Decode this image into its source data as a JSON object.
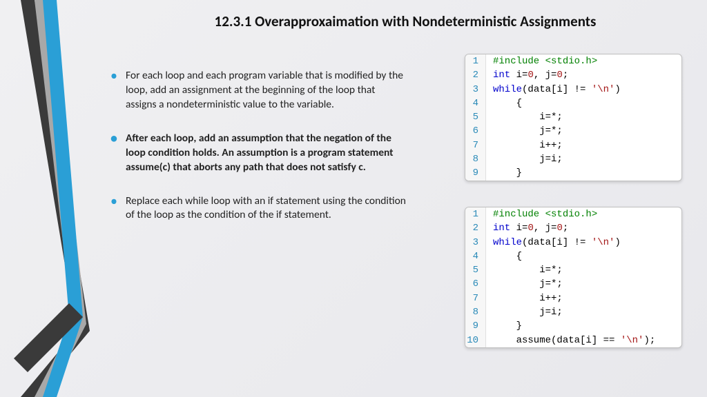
{
  "title": "12.3.1 Overapproxaimation with Nondeterministic Assignments",
  "bullets": [
    {
      "text": "For each loop and each program variable that is modified by the loop, add an assignment at the beginning of the loop that assigns a nondeterministic value to the variable.",
      "bold": false
    },
    {
      "text": " After each loop, add an assumption that the negation of the loop condition holds. An assumption is a program statement assume(c) that aborts any path that does not satisfy c.",
      "bold": true
    },
    {
      "text": " Replace each while loop with an if statement using the condition of the loop as the condition of the if statement.",
      "bold": false
    }
  ],
  "code1": {
    "lines": [
      {
        "n": 1,
        "tokens": [
          [
            "inc",
            "#include <stdio.h>"
          ]
        ]
      },
      {
        "n": 2,
        "tokens": [
          [
            "kw",
            "int"
          ],
          [
            "id",
            " i="
          ],
          [
            "num",
            "0"
          ],
          [
            "id",
            ", j="
          ],
          [
            "num",
            "0"
          ],
          [
            "id",
            ";"
          ]
        ]
      },
      {
        "n": 3,
        "tokens": [
          [
            "kw",
            "while"
          ],
          [
            "id",
            "(data[i] != "
          ],
          [
            "str",
            "'\\n'"
          ],
          [
            "id",
            ")"
          ]
        ]
      },
      {
        "n": 4,
        "tokens": [
          [
            "id",
            "    {"
          ]
        ]
      },
      {
        "n": 5,
        "tokens": [
          [
            "id",
            "        i=*;"
          ]
        ]
      },
      {
        "n": 6,
        "tokens": [
          [
            "id",
            "        j=*;"
          ]
        ]
      },
      {
        "n": 7,
        "tokens": [
          [
            "id",
            "        i++;"
          ]
        ]
      },
      {
        "n": 8,
        "tokens": [
          [
            "id",
            "        j=i;"
          ]
        ]
      },
      {
        "n": 9,
        "tokens": [
          [
            "id",
            "    }"
          ]
        ]
      }
    ]
  },
  "code2": {
    "lines": [
      {
        "n": 1,
        "tokens": [
          [
            "inc",
            "#include <stdio.h>"
          ]
        ]
      },
      {
        "n": 2,
        "tokens": [
          [
            "kw",
            "int"
          ],
          [
            "id",
            " i="
          ],
          [
            "num",
            "0"
          ],
          [
            "id",
            ", j="
          ],
          [
            "num",
            "0"
          ],
          [
            "id",
            ";"
          ]
        ]
      },
      {
        "n": 3,
        "tokens": [
          [
            "kw",
            "while"
          ],
          [
            "id",
            "(data[i] != "
          ],
          [
            "str",
            "'\\n'"
          ],
          [
            "id",
            ")"
          ]
        ]
      },
      {
        "n": 4,
        "tokens": [
          [
            "id",
            "    {"
          ]
        ]
      },
      {
        "n": 5,
        "tokens": [
          [
            "id",
            "        i=*;"
          ]
        ]
      },
      {
        "n": 6,
        "tokens": [
          [
            "id",
            "        j=*;"
          ]
        ]
      },
      {
        "n": 7,
        "tokens": [
          [
            "id",
            "        i++;"
          ]
        ]
      },
      {
        "n": 8,
        "tokens": [
          [
            "id",
            "        j=i;"
          ]
        ]
      },
      {
        "n": 9,
        "tokens": [
          [
            "id",
            "    }"
          ]
        ]
      },
      {
        "n": 10,
        "tokens": [
          [
            "id",
            "    assume(data[i] == "
          ],
          [
            "str",
            "'\\n'"
          ],
          [
            "id",
            ");"
          ]
        ]
      }
    ]
  },
  "style": {
    "chevron_colors": {
      "dark": "#3a3a3a",
      "blue": "#2a9fd6",
      "light": "#a8a8a8"
    },
    "bullet_color": "#2a9fd6",
    "code_colors": {
      "include": "#008000",
      "keyword": "#0000cc",
      "number": "#a31515",
      "string": "#a31515",
      "lineno": "#2a8ab8"
    },
    "background": "#f0f0f2",
    "font_family": "Segoe UI",
    "title_fontsize": 21,
    "body_fontsize": 15.5,
    "code_fontsize": 14
  }
}
